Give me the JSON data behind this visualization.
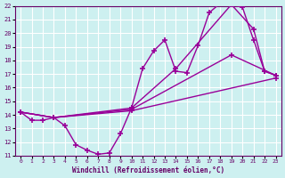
{
  "title": "",
  "xlabel": "Windchill (Refroidissement éolien,°C)",
  "bg_color": "#cdf0f0",
  "line_color": "#990099",
  "grid_color": "#ffffff",
  "xlim": [
    -0.5,
    23.5
  ],
  "ylim": [
    11,
    22
  ],
  "xtick_labels": [
    "0",
    "1",
    "2",
    "3",
    "4",
    "5",
    "6",
    "7",
    "8",
    "9",
    "10",
    "11",
    "12",
    "13",
    "14",
    "15",
    "16",
    "17",
    "18",
    "19",
    "20",
    "21",
    "22",
    "23"
  ],
  "xtick_vals": [
    0,
    1,
    2,
    3,
    4,
    5,
    6,
    7,
    8,
    9,
    10,
    11,
    12,
    13,
    14,
    15,
    16,
    17,
    18,
    19,
    20,
    21,
    22,
    23
  ],
  "ytick_vals": [
    11,
    12,
    13,
    14,
    15,
    16,
    17,
    18,
    19,
    20,
    21,
    22
  ],
  "line1_x": [
    0,
    1,
    2,
    3,
    4,
    5,
    6,
    7,
    8,
    9,
    10,
    11,
    12,
    13,
    14,
    15,
    16,
    17,
    18,
    19,
    20,
    21,
    22,
    23
  ],
  "line1_y": [
    14.2,
    13.6,
    13.6,
    13.8,
    13.2,
    11.8,
    11.4,
    11.1,
    11.2,
    12.6,
    14.5,
    17.4,
    18.7,
    19.5,
    17.2,
    17.1,
    19.1,
    21.5,
    22.2,
    22.1,
    21.9,
    19.5,
    17.2,
    16.9
  ],
  "line2_x": [
    0,
    3,
    10,
    14,
    19,
    21,
    22,
    23
  ],
  "line2_y": [
    14.2,
    13.8,
    14.5,
    17.4,
    22.1,
    20.3,
    17.2,
    16.9
  ],
  "line3_x": [
    0,
    3,
    10,
    19,
    23
  ],
  "line3_y": [
    14.2,
    13.8,
    14.4,
    18.4,
    16.9
  ],
  "line4_x": [
    0,
    3,
    10,
    23
  ],
  "line4_y": [
    14.2,
    13.8,
    14.3,
    16.7
  ],
  "marker": "+",
  "markersize": 4,
  "linewidth": 1.0
}
